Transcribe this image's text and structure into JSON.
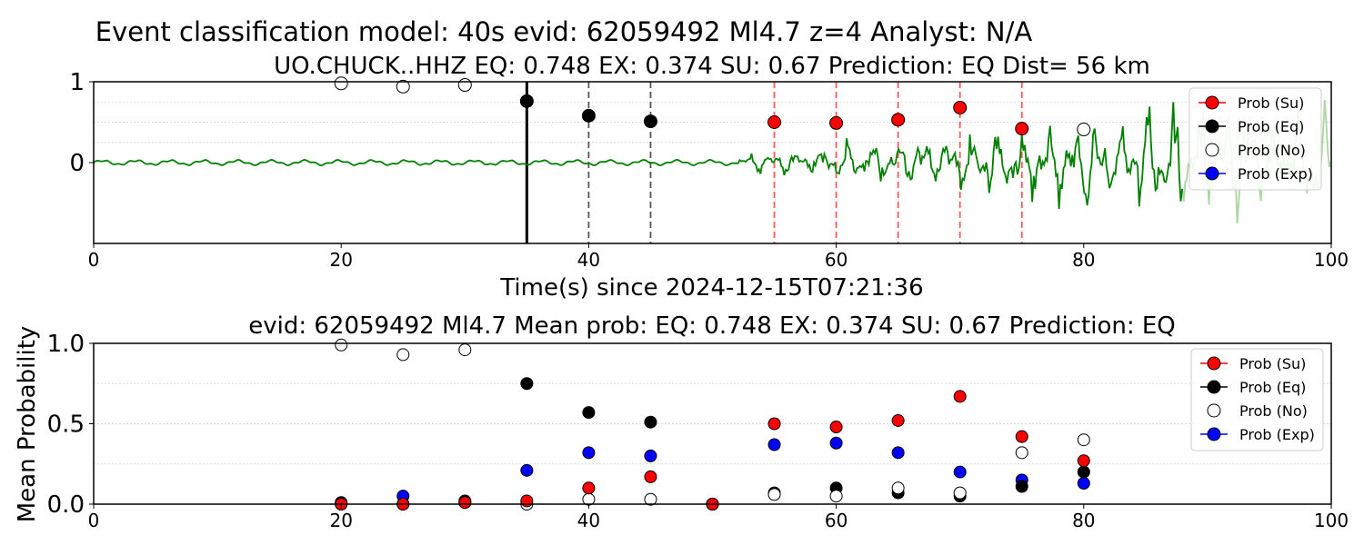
{
  "figure_title": "Event classification model: 40s evid: 62059492 Ml4.7 z=4 Analyst: N/A",
  "colors": {
    "su": "#ff0000",
    "eq": "#000000",
    "no": "#ffffff",
    "exp": "#0000ff",
    "waveform": "#008000",
    "waveform_faded": "#a8d8a0",
    "red_marker_line": "#ff5a5a",
    "dashed_line": "#555555",
    "grid": "#d0d0d0"
  },
  "chart_data": [
    {
      "type": "line",
      "title": "UO.CHUCK..HHZ   EQ: 0.748  EX: 0.374  SU: 0.67   Prediction: EQ    Dist= 56 km",
      "xlabel": "Time(s) since 2024-12-15T07:21:36",
      "ylabel": "",
      "xlim": [
        0,
        100
      ],
      "ylim": [
        -1,
        1
      ],
      "xticks": [
        "0",
        "20",
        "40",
        "60",
        "80",
        "100"
      ],
      "yticks": [
        "0",
        "1"
      ],
      "grid": "horizontal dotted",
      "legend": "top-right",
      "legend_entries": [
        "Prob (Su)",
        "Prob (Eq)",
        "Prob (No)",
        "Prob (Exp)"
      ],
      "waveform": {
        "onset_time": 52,
        "faded_after": 85
      },
      "vlines": [
        {
          "x": 35,
          "style": "solid-black"
        },
        {
          "x": 40,
          "style": "dashed-gray"
        },
        {
          "x": 45,
          "style": "dashed-gray"
        },
        {
          "x": 55,
          "style": "dashed-red"
        },
        {
          "x": 60,
          "style": "dashed-red"
        },
        {
          "x": 65,
          "style": "dashed-red"
        },
        {
          "x": 70,
          "style": "dashed-red"
        },
        {
          "x": 75,
          "style": "dashed-red"
        }
      ],
      "markers": [
        {
          "x": 20,
          "y": 0.98,
          "kind": "no"
        },
        {
          "x": 25,
          "y": 0.94,
          "kind": "no"
        },
        {
          "x": 30,
          "y": 0.96,
          "kind": "no"
        },
        {
          "x": 35,
          "y": 0.76,
          "kind": "eq"
        },
        {
          "x": 40,
          "y": 0.58,
          "kind": "eq"
        },
        {
          "x": 45,
          "y": 0.51,
          "kind": "eq"
        },
        {
          "x": 55,
          "y": 0.5,
          "kind": "su"
        },
        {
          "x": 60,
          "y": 0.49,
          "kind": "su"
        },
        {
          "x": 65,
          "y": 0.53,
          "kind": "su"
        },
        {
          "x": 70,
          "y": 0.68,
          "kind": "su"
        },
        {
          "x": 75,
          "y": 0.42,
          "kind": "su"
        },
        {
          "x": 80,
          "y": 0.41,
          "kind": "no"
        }
      ]
    },
    {
      "type": "scatter",
      "title": "evid: 62059492  Ml4.7   Mean prob:   EQ: 0.748  EX: 0.374  SU: 0.67   Prediction: EQ",
      "xlabel": "",
      "ylabel": "Mean Probability",
      "xlim": [
        0,
        100
      ],
      "ylim": [
        0,
        1
      ],
      "xticks": [
        "0",
        "20",
        "40",
        "60",
        "80",
        "100"
      ],
      "yticks": [
        "0.0",
        "0.5",
        "1.0"
      ],
      "grid": "horizontal dotted",
      "legend": "top-right",
      "legend_entries": [
        "Prob (Su)",
        "Prob (Eq)",
        "Prob (No)",
        "Prob (Exp)"
      ],
      "x": [
        20,
        25,
        30,
        35,
        40,
        45,
        50,
        55,
        60,
        65,
        70,
        75,
        80
      ],
      "series": [
        {
          "name": "Prob (Exp)",
          "kind": "exp",
          "values": [
            0.0,
            0.05,
            0.01,
            0.21,
            0.32,
            0.3,
            0.0,
            0.37,
            0.38,
            0.32,
            0.2,
            0.15,
            0.13
          ]
        },
        {
          "name": "Prob (Eq)",
          "kind": "eq",
          "values": [
            0.01,
            0.0,
            0.02,
            0.75,
            0.57,
            0.51,
            0.0,
            0.07,
            0.1,
            0.07,
            0.05,
            0.11,
            0.2
          ]
        },
        {
          "name": "Prob (No)",
          "kind": "no",
          "values": [
            0.99,
            0.93,
            0.96,
            0.0,
            0.03,
            0.03,
            0.0,
            0.06,
            0.05,
            0.1,
            0.07,
            0.32,
            0.4
          ]
        },
        {
          "name": "Prob (Su)",
          "kind": "su",
          "values": [
            0.0,
            0.0,
            0.01,
            0.02,
            0.1,
            0.17,
            0.0,
            0.5,
            0.48,
            0.52,
            0.67,
            0.42,
            0.27
          ]
        }
      ]
    }
  ]
}
